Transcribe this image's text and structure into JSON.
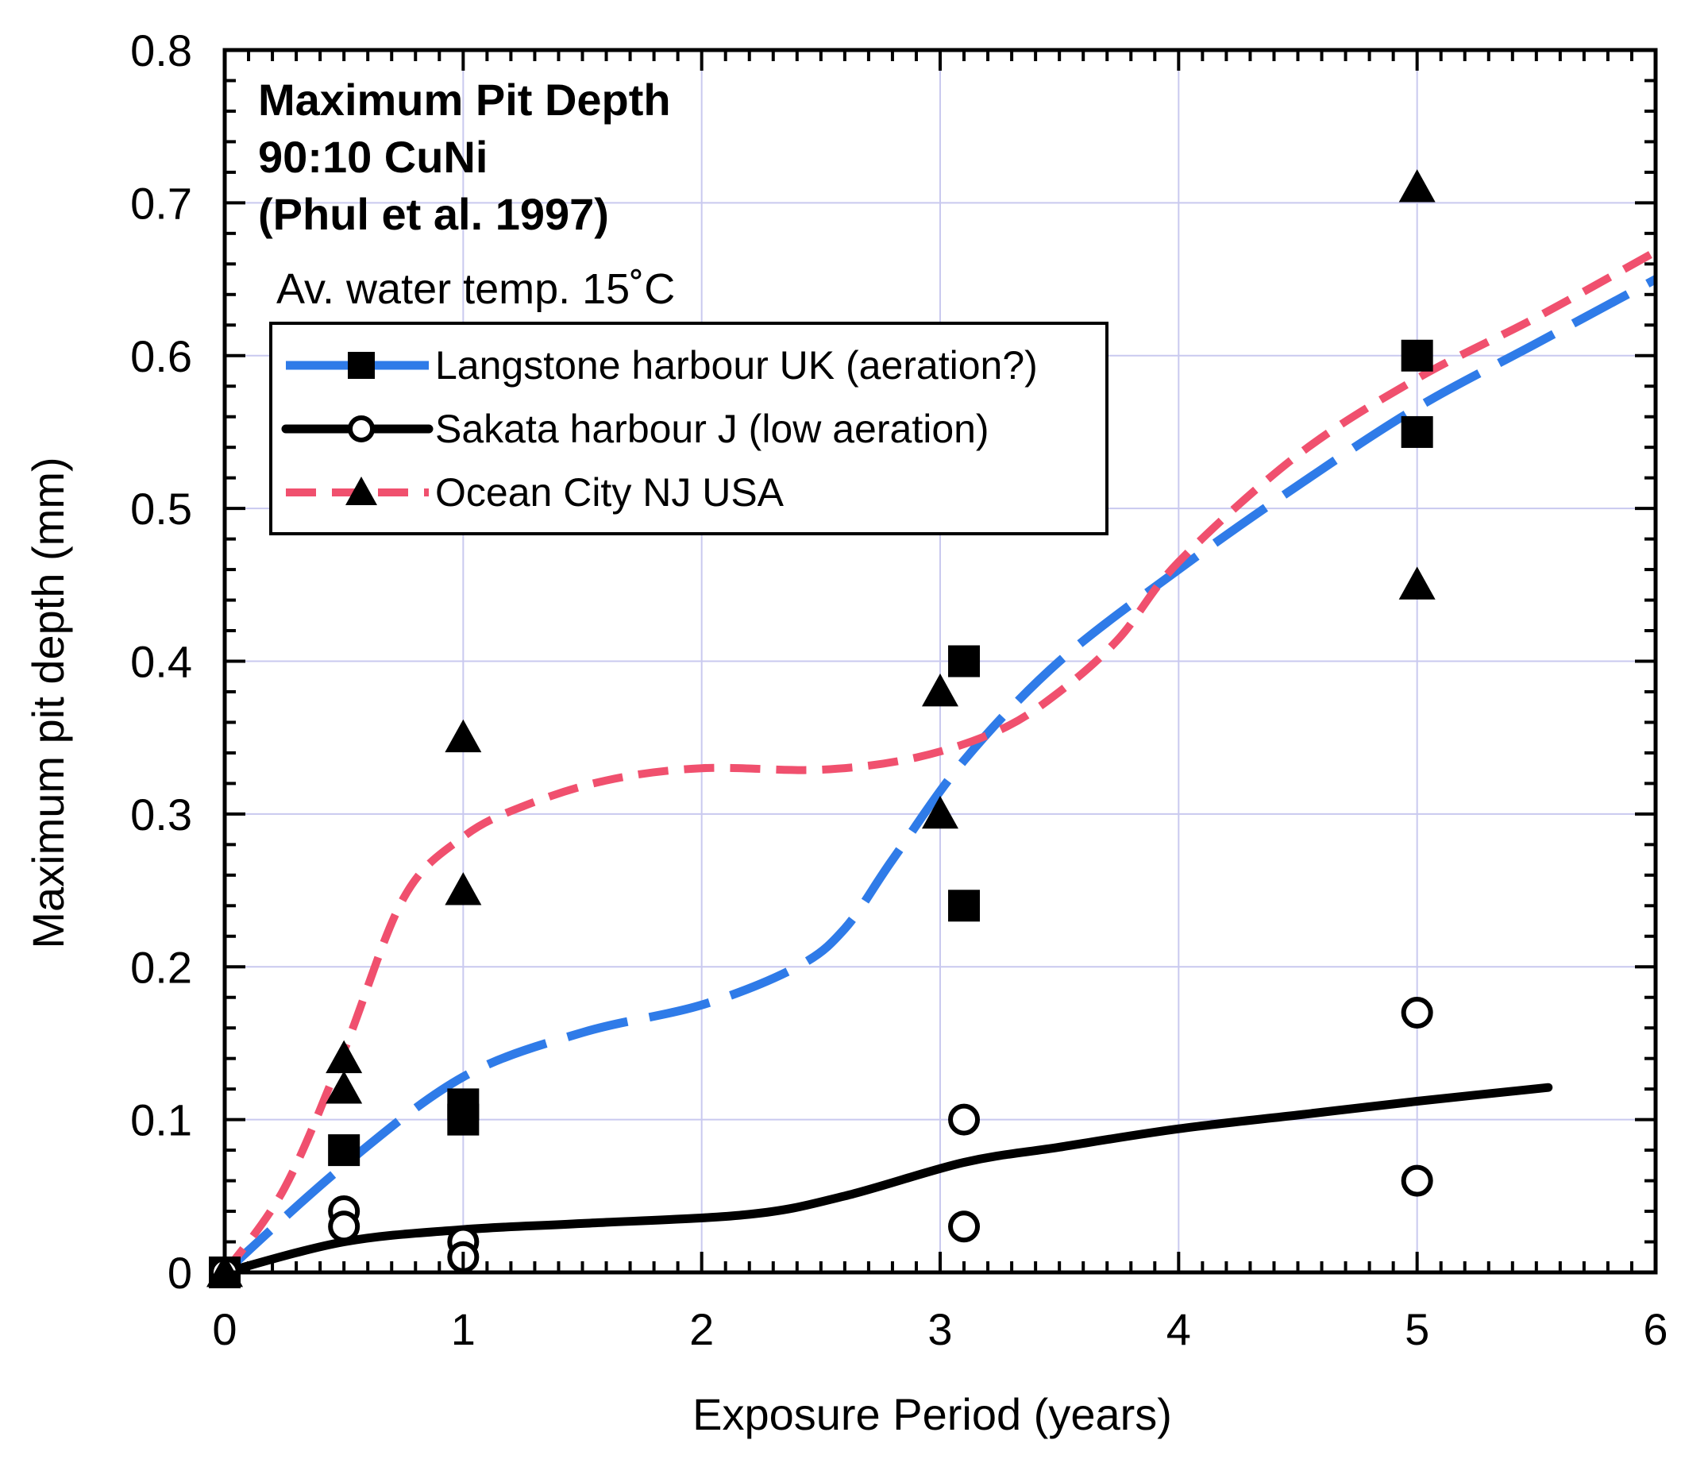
{
  "chart_data": {
    "type": "scatter",
    "title_lines": [
      "Maximum Pit Depth",
      "90:10 CuNi",
      "(Phul et al. 1997)"
    ],
    "annotation": "Av. water temp. 15˚C",
    "xlabel": "Exposure Period (years)",
    "ylabel": "Maximum pit depth (mm)",
    "xlim": [
      0,
      6
    ],
    "ylim": [
      0,
      0.8
    ],
    "xticks": [
      "0",
      "1",
      "2",
      "3",
      "4",
      "5",
      "6"
    ],
    "yticks": [
      "0",
      "0.1",
      "0.2",
      "0.3",
      "0.4",
      "0.5",
      "0.6",
      "0.7",
      "0.8"
    ],
    "grid": true,
    "legend_position": "upper-left",
    "series": [
      {
        "name": "Langstone harbour UK (aeration?)",
        "marker": "filled-square",
        "line_style": "dashed",
        "line_color": "#2f7be8",
        "points": [
          [
            0,
            0
          ],
          [
            0.5,
            0.08
          ],
          [
            1,
            0.1
          ],
          [
            1,
            0.11
          ],
          [
            3.1,
            0.4
          ],
          [
            3.1,
            0.24
          ],
          [
            5,
            0.6
          ],
          [
            5,
            0.55
          ]
        ],
        "curve": [
          [
            0,
            0
          ],
          [
            0.5,
            0.07
          ],
          [
            1,
            0.128
          ],
          [
            1.5,
            0.157
          ],
          [
            2,
            0.175
          ],
          [
            2.4,
            0.2
          ],
          [
            2.6,
            0.225
          ],
          [
            2.8,
            0.27
          ],
          [
            3.1,
            0.335
          ],
          [
            3.5,
            0.4
          ],
          [
            4,
            0.46
          ],
          [
            4.5,
            0.515
          ],
          [
            5,
            0.566
          ],
          [
            5.5,
            0.608
          ],
          [
            6,
            0.65
          ]
        ]
      },
      {
        "name": "Sakata harbour J (low aeration)",
        "marker": "open-circle",
        "line_style": "solid",
        "line_color": "#000000",
        "points": [
          [
            0,
            0
          ],
          [
            0.5,
            0.04
          ],
          [
            0.5,
            0.03
          ],
          [
            1,
            0.02
          ],
          [
            1,
            0.01
          ],
          [
            3.1,
            0.1
          ],
          [
            3.1,
            0.03
          ],
          [
            5,
            0.17
          ],
          [
            5,
            0.06
          ]
        ],
        "curve": [
          [
            0,
            0
          ],
          [
            0.5,
            0.02
          ],
          [
            1,
            0.028
          ],
          [
            1.5,
            0.032
          ],
          [
            2.2,
            0.038
          ],
          [
            2.6,
            0.05
          ],
          [
            3.1,
            0.072
          ],
          [
            3.5,
            0.082
          ],
          [
            4,
            0.094
          ],
          [
            4.5,
            0.103
          ],
          [
            5,
            0.112
          ],
          [
            5.55,
            0.121
          ]
        ]
      },
      {
        "name": "Ocean City NJ USA",
        "marker": "filled-triangle",
        "line_style": "dashed",
        "line_color": "#f0506e",
        "points": [
          [
            0,
            0
          ],
          [
            0.5,
            0.14
          ],
          [
            0.5,
            0.12
          ],
          [
            1,
            0.35
          ],
          [
            1,
            0.25
          ],
          [
            3,
            0.38
          ],
          [
            3,
            0.3
          ],
          [
            5,
            0.71
          ],
          [
            5,
            0.45
          ]
        ],
        "curve": [
          [
            0,
            0
          ],
          [
            0.25,
            0.055
          ],
          [
            0.5,
            0.145
          ],
          [
            0.75,
            0.245
          ],
          [
            1,
            0.285
          ],
          [
            1.25,
            0.305
          ],
          [
            1.6,
            0.322
          ],
          [
            2,
            0.33
          ],
          [
            2.5,
            0.329
          ],
          [
            2.9,
            0.337
          ],
          [
            3.25,
            0.355
          ],
          [
            3.5,
            0.38
          ],
          [
            3.75,
            0.415
          ],
          [
            4,
            0.465
          ],
          [
            4.5,
            0.535
          ],
          [
            5,
            0.585
          ],
          [
            5.5,
            0.625
          ],
          [
            6,
            0.668
          ]
        ]
      }
    ]
  }
}
